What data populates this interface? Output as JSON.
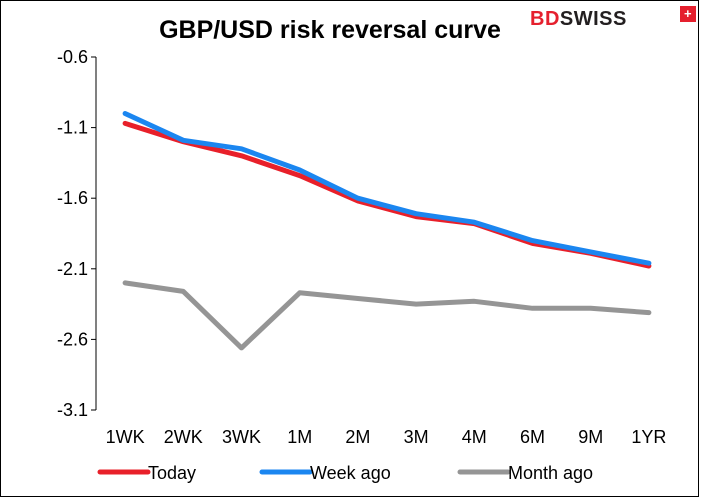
{
  "logo": {
    "text": "BDSWISS",
    "prefix": "BD",
    "suffix": "SWISS",
    "accent_color": "#e5202e"
  },
  "chart_data": {
    "type": "line",
    "title": "GBP/USD risk reversal curve",
    "xlabel": "",
    "ylabel": "",
    "categories": [
      "1WK",
      "2WK",
      "3WK",
      "1M",
      "2M",
      "3M",
      "4M",
      "6M",
      "9M",
      "1YR"
    ],
    "ylim": [
      -3.1,
      -0.6
    ],
    "yticks": [
      -0.6,
      -1.1,
      -1.6,
      -2.1,
      -2.6,
      -3.1
    ],
    "grid": false,
    "legend_position": "bottom",
    "series": [
      {
        "name": "Today",
        "color": "#e8202a",
        "values": [
          -1.07,
          -1.2,
          -1.3,
          -1.44,
          -1.62,
          -1.73,
          -1.78,
          -1.92,
          -1.99,
          -2.08
        ]
      },
      {
        "name": "Week ago",
        "color": "#1b86f0",
        "values": [
          -1.0,
          -1.19,
          -1.25,
          -1.4,
          -1.6,
          -1.71,
          -1.77,
          -1.9,
          -1.98,
          -2.06
        ]
      },
      {
        "name": "Month ago",
        "color": "#959595",
        "values": [
          -2.2,
          -2.26,
          -2.66,
          -2.27,
          -2.31,
          -2.35,
          -2.33,
          -2.38,
          -2.38,
          -2.41
        ]
      }
    ]
  }
}
